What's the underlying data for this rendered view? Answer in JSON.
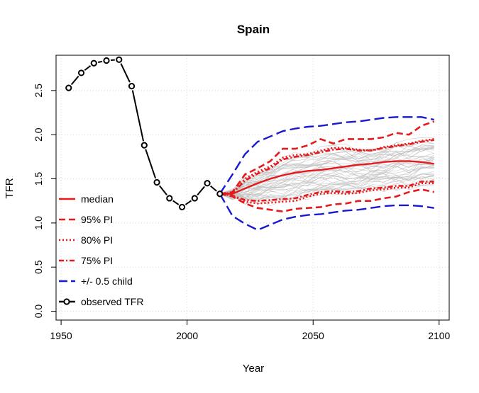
{
  "chart_data": {
    "type": "line",
    "title": "Spain",
    "xlabel": "Year",
    "ylabel": "TFR",
    "xlim": [
      1948,
      2104
    ],
    "ylim": [
      -0.1,
      2.9
    ],
    "x_ticks": [
      1950,
      2000,
      2050,
      2100
    ],
    "y_ticks": [
      0.0,
      0.5,
      1.0,
      1.5,
      2.0,
      2.5
    ],
    "x_tick_labels": [
      "1950",
      "2000",
      "2050",
      "2100"
    ],
    "y_tick_labels": [
      "0.0",
      "0.5",
      "1.0",
      "1.5",
      "2.0",
      "2.5"
    ],
    "grid": true,
    "legend_position": "bottom-left",
    "legend": [
      {
        "label": "median",
        "color": "#e41a1c",
        "style": "solid",
        "marker": false
      },
      {
        "label": "95% PI",
        "color": "#e41a1c",
        "style": "dashed",
        "marker": false
      },
      {
        "label": "80% PI",
        "color": "#e41a1c",
        "style": "dotted",
        "marker": false
      },
      {
        "label": "75% PI",
        "color": "#e41a1c",
        "style": "dashdot",
        "marker": false
      },
      {
        "label": "+/- 0.5 child",
        "color": "#1a1acd",
        "style": "longdash",
        "marker": false
      },
      {
        "label": "observed TFR",
        "color": "#000000",
        "style": "solid",
        "marker": true
      }
    ],
    "observed": {
      "x": [
        1953,
        1958,
        1963,
        1968,
        1973,
        1978,
        1983,
        1988,
        1993,
        1998,
        2003,
        2008,
        2013
      ],
      "y": [
        2.53,
        2.7,
        2.81,
        2.84,
        2.85,
        2.55,
        1.88,
        1.46,
        1.28,
        1.18,
        1.28,
        1.45,
        1.33
      ]
    },
    "projection_years": [
      2013,
      2018,
      2023,
      2028,
      2033,
      2038,
      2043,
      2048,
      2053,
      2058,
      2063,
      2068,
      2073,
      2078,
      2083,
      2088,
      2093,
      2098
    ],
    "median": [
      1.33,
      1.33,
      1.39,
      1.45,
      1.5,
      1.54,
      1.57,
      1.59,
      1.6,
      1.62,
      1.64,
      1.66,
      1.67,
      1.69,
      1.7,
      1.7,
      1.69,
      1.67
    ],
    "pi95_upper": [
      1.33,
      1.35,
      1.55,
      1.62,
      1.7,
      1.84,
      1.84,
      1.88,
      1.95,
      1.9,
      1.95,
      1.95,
      1.95,
      1.97,
      2.02,
      2.0,
      2.1,
      2.15
    ],
    "pi95_lower": [
      1.33,
      1.3,
      1.22,
      1.17,
      1.15,
      1.13,
      1.16,
      1.17,
      1.18,
      1.21,
      1.22,
      1.25,
      1.25,
      1.28,
      1.3,
      1.35,
      1.38,
      1.35
    ],
    "pi80_upper": [
      1.33,
      1.34,
      1.5,
      1.58,
      1.64,
      1.74,
      1.77,
      1.78,
      1.82,
      1.85,
      1.85,
      1.83,
      1.82,
      1.86,
      1.88,
      1.9,
      1.93,
      1.95
    ],
    "pi80_lower": [
      1.33,
      1.31,
      1.24,
      1.22,
      1.23,
      1.24,
      1.25,
      1.3,
      1.33,
      1.34,
      1.33,
      1.34,
      1.37,
      1.38,
      1.4,
      1.4,
      1.45,
      1.45
    ],
    "pi75_upper": [
      1.33,
      1.34,
      1.48,
      1.56,
      1.62,
      1.72,
      1.75,
      1.77,
      1.8,
      1.83,
      1.84,
      1.82,
      1.82,
      1.85,
      1.87,
      1.89,
      1.92,
      1.94
    ],
    "pi75_lower": [
      1.33,
      1.31,
      1.26,
      1.25,
      1.26,
      1.27,
      1.28,
      1.32,
      1.35,
      1.36,
      1.35,
      1.36,
      1.39,
      1.4,
      1.42,
      1.42,
      1.47,
      1.47
    ],
    "half_child_upper": [
      1.33,
      1.55,
      1.78,
      1.92,
      1.98,
      2.04,
      2.07,
      2.09,
      2.1,
      2.12,
      2.14,
      2.15,
      2.17,
      2.19,
      2.2,
      2.2,
      2.2,
      2.17
    ],
    "half_child_lower": [
      1.33,
      1.08,
      0.99,
      0.92,
      0.98,
      1.04,
      1.07,
      1.09,
      1.1,
      1.12,
      1.14,
      1.15,
      1.17,
      1.19,
      1.2,
      1.2,
      1.19,
      1.17
    ],
    "trajectory_count": 50,
    "colors": {
      "median": "#e41a1c",
      "pi": "#e41a1c",
      "half_child": "#1a1acd",
      "observed": "#000000",
      "trajectories": "#bdbdbd",
      "grid": "#d3d3d3"
    }
  }
}
